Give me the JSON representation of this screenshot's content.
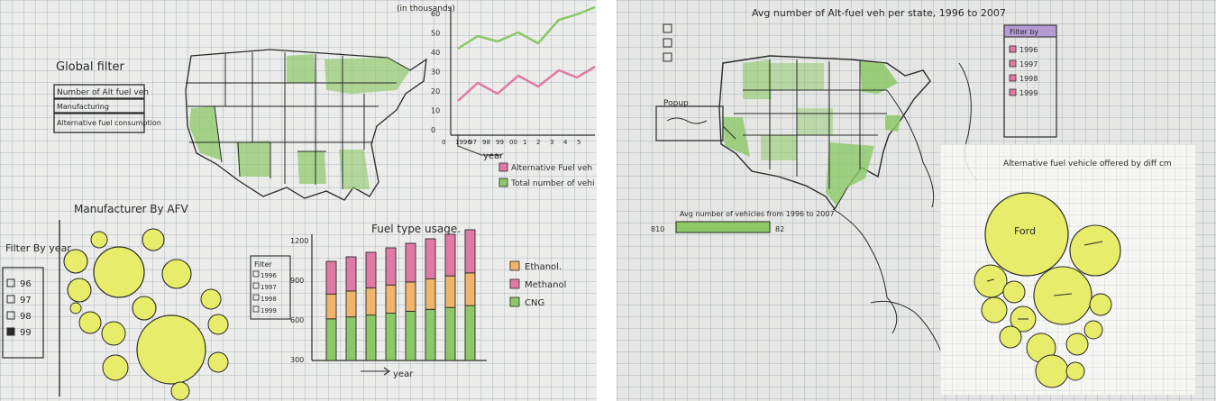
{
  "left": {
    "global_filter": {
      "title": "Global filter",
      "options": [
        "Number of Alt fuel veh",
        "Manufacturing",
        "Alternative fuel consumption"
      ]
    },
    "line_chart": {
      "y_unit_label": "(in thousands)",
      "y_ticks": [
        "60",
        "50",
        "40",
        "30",
        "20",
        "10",
        "0"
      ],
      "x_ticks": [
        "0",
        "1996",
        "97",
        "98",
        "99",
        "00",
        "1",
        "2",
        "3",
        "4",
        "5"
      ],
      "x_label": "year",
      "legend": [
        "Alternative Fuel veh",
        "Total number of vehi"
      ]
    },
    "manufacturer": {
      "title": "Manufacturer By AFV"
    },
    "filter_by_year": {
      "title": "Filter By year",
      "options": [
        "96",
        "97",
        "98",
        "99"
      ]
    },
    "fuel_usage": {
      "title": "Fuel type usage.",
      "filter_title": "Filter",
      "filter_options": [
        "1996",
        "1997",
        "1998",
        "1999"
      ],
      "y_ticks": [
        "1200",
        "900",
        "600",
        "300"
      ],
      "x_label": "year",
      "legend": [
        "Ethanol.",
        "Methanol",
        "CNG"
      ]
    }
  },
  "right": {
    "title": "Avg number of Alt-fuel veh per state, 1996 to 2007",
    "popup_label": "Popup",
    "slider": {
      "title": "Avg number of vehicles from 1996 to 2007",
      "min_label": "810",
      "max_label": "82"
    },
    "filter_panel": {
      "title": "Filter by",
      "years": [
        "1996",
        "1997",
        "1998",
        "1999"
      ]
    },
    "bubble_sheet": {
      "title": "Alternative fuel vehicle offered by diff cm",
      "big_bubble_label": "Ford"
    }
  },
  "colors": {
    "green": "#8cc866",
    "yellow": "#e7ec6a",
    "pink": "#e07aa5",
    "orange": "#f0b46a",
    "ink": "#2a2a2a"
  }
}
